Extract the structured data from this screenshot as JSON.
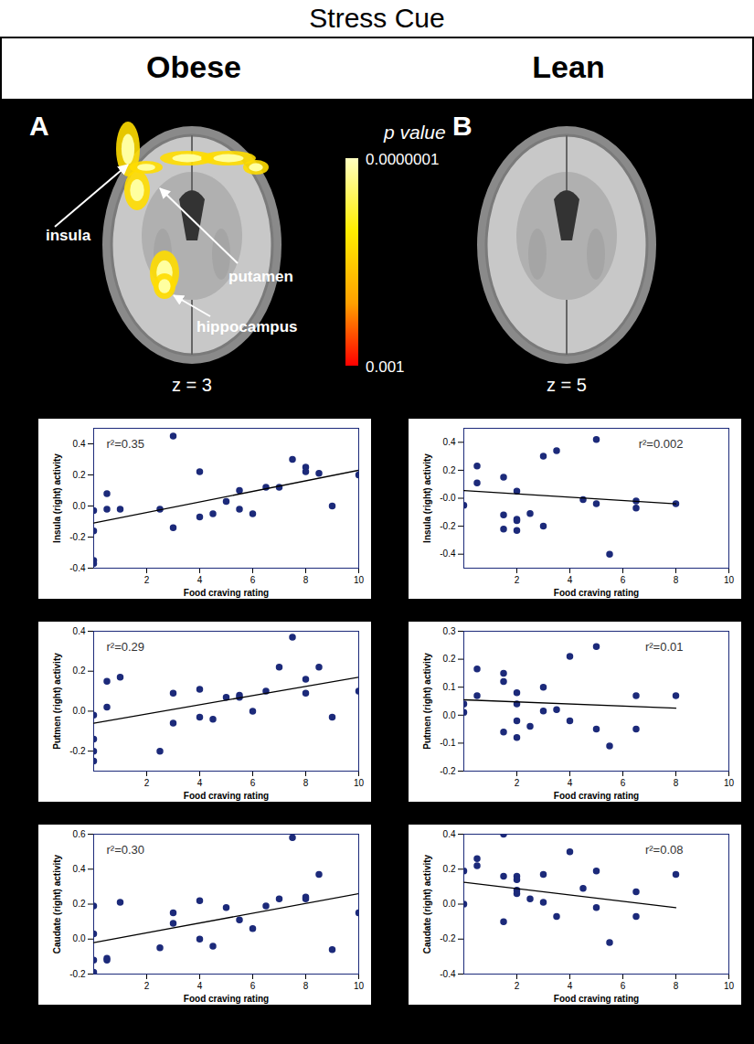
{
  "title": "Stress Cue",
  "columns": [
    "Obese",
    "Lean"
  ],
  "panels": [
    {
      "letter": "A",
      "slice": "z = 3",
      "labels": [
        "insula",
        "putamen",
        "hippocampus"
      ]
    },
    {
      "letter": "B",
      "slice": "z = 5",
      "labels": []
    }
  ],
  "colorbar": {
    "title": "p value",
    "ticks": [
      {
        "value": 1e-07,
        "label": "0.0000001"
      },
      {
        "value": 0.001,
        "label": "0.001"
      }
    ]
  },
  "chart_data": [
    {
      "type": "scatter",
      "xlabel": "Food craving rating",
      "ylabel": "Insula (right) activity",
      "annotation": "r²=0.35",
      "xlim": [
        0,
        10
      ],
      "xticks": [
        2,
        4,
        6,
        8,
        10
      ],
      "ylim": [
        -0.4,
        0.5
      ],
      "yticks": [
        -0.4,
        -0.2,
        {
          "value": 0,
          "label": "0.0"
        },
        0.2,
        0.4
      ],
      "series": [
        {
          "type": "scatter",
          "marker": "circle",
          "color": "#1c2a7a",
          "x": [
            0,
            0,
            0,
            0,
            0.5,
            0.5,
            1,
            2.5,
            3,
            3,
            4,
            4,
            4.5,
            5,
            5.5,
            5.5,
            6,
            6.5,
            7,
            7.5,
            8,
            8,
            8.5,
            9,
            10
          ],
          "values": [
            -0.03,
            -0.16,
            -0.35,
            -0.37,
            0.08,
            -0.02,
            -0.02,
            -0.02,
            -0.14,
            0.45,
            0.22,
            -0.07,
            -0.05,
            0.03,
            0.1,
            -0.02,
            -0.05,
            0.12,
            0.12,
            0.3,
            0.25,
            0.22,
            0.21,
            0.0,
            0.2
          ]
        },
        {
          "type": "line",
          "line_style": "solid",
          "color": "#000000",
          "x": [
            0,
            10
          ],
          "values": [
            -0.11,
            0.23
          ]
        }
      ]
    },
    {
      "type": "scatter",
      "xlabel": "Food craving rating",
      "ylabel": "Insula (right) activity",
      "annotation": "r²=0.002",
      "xlim": [
        0,
        10
      ],
      "xticks": [
        2,
        4,
        6,
        8,
        10
      ],
      "ylim": [
        -0.5,
        0.5
      ],
      "yticks": [
        -0.4,
        -0.2,
        {
          "value": 0,
          "label": "-0.0"
        },
        0.2,
        0.4
      ],
      "series": [
        {
          "type": "scatter",
          "marker": "circle",
          "color": "#1c2a7a",
          "x": [
            0,
            0.5,
            0.5,
            1.5,
            1.5,
            1.5,
            2,
            2,
            2,
            2,
            2.5,
            3,
            3,
            3.5,
            4.5,
            5,
            5,
            5.5,
            6.5,
            6.5,
            8
          ],
          "values": [
            -0.05,
            0.23,
            0.11,
            0.15,
            -0.12,
            -0.22,
            0.05,
            -0.15,
            -0.16,
            -0.23,
            -0.11,
            0.3,
            -0.2,
            0.34,
            -0.01,
            0.42,
            -0.04,
            -0.4,
            -0.02,
            -0.07,
            -0.04
          ]
        },
        {
          "type": "line",
          "line_style": "solid",
          "color": "#000000",
          "x": [
            0,
            8
          ],
          "values": [
            0.055,
            -0.04
          ]
        }
      ]
    },
    {
      "type": "scatter",
      "xlabel": "Food craving rating",
      "ylabel": "Putmen (right) activity",
      "annotation": "r²=0.29",
      "xlim": [
        0,
        10
      ],
      "xticks": [
        2,
        4,
        6,
        8,
        10
      ],
      "ylim": [
        -0.3,
        0.4
      ],
      "yticks": [
        -0.2,
        {
          "value": 0,
          "label": "0.0"
        },
        0.2,
        0.4
      ],
      "series": [
        {
          "type": "scatter",
          "marker": "circle",
          "color": "#1c2a7a",
          "x": [
            0,
            0,
            0,
            0,
            0.5,
            0.5,
            1,
            2.5,
            3,
            3,
            4,
            4,
            4.5,
            5,
            5.5,
            5.5,
            6,
            6.5,
            7,
            7.5,
            8,
            8,
            8.5,
            9,
            10
          ],
          "values": [
            -0.02,
            -0.14,
            -0.2,
            -0.25,
            0.15,
            0.02,
            0.17,
            -0.2,
            0.09,
            -0.06,
            0.11,
            -0.03,
            -0.04,
            0.07,
            0.07,
            0.08,
            0.0,
            0.1,
            0.22,
            0.37,
            0.16,
            0.09,
            0.22,
            -0.03,
            0.1
          ]
        },
        {
          "type": "line",
          "line_style": "solid",
          "color": "#000000",
          "x": [
            0,
            10
          ],
          "values": [
            -0.06,
            0.17
          ]
        }
      ]
    },
    {
      "type": "scatter",
      "xlabel": "Food craving rating",
      "ylabel": "Putmen (right) activity",
      "annotation": "r²=0.01",
      "xlim": [
        0,
        10
      ],
      "xticks": [
        2,
        4,
        6,
        8,
        10
      ],
      "ylim": [
        -0.2,
        0.3
      ],
      "yticks": [
        -0.2,
        -0.1,
        {
          "value": 0,
          "label": "0.0"
        },
        0.1,
        0.2,
        0.3
      ],
      "series": [
        {
          "type": "scatter",
          "marker": "circle",
          "color": "#1c2a7a",
          "x": [
            0,
            0,
            0.5,
            0.5,
            1.5,
            1.5,
            1.5,
            2,
            2,
            2,
            2,
            2.5,
            3,
            3,
            3.5,
            4,
            4,
            5,
            5,
            5.5,
            6.5,
            6.5,
            8
          ],
          "values": [
            0.04,
            0.01,
            0.07,
            0.165,
            0.15,
            0.12,
            -0.06,
            0.08,
            0.04,
            -0.02,
            -0.08,
            -0.04,
            0.1,
            0.015,
            0.02,
            0.21,
            -0.02,
            0.245,
            -0.05,
            -0.11,
            0.07,
            -0.05,
            0.07
          ]
        },
        {
          "type": "line",
          "line_style": "solid",
          "color": "#000000",
          "x": [
            0,
            8
          ],
          "values": [
            0.055,
            0.025
          ]
        }
      ]
    },
    {
      "type": "scatter",
      "xlabel": "Food craving rating",
      "ylabel": "Caudate (right) activity",
      "annotation": "r²=0.30",
      "xlim": [
        0,
        10
      ],
      "xticks": [
        2,
        4,
        6,
        8,
        10
      ],
      "ylim": [
        -0.2,
        0.6
      ],
      "yticks": [
        -0.2,
        {
          "value": 0,
          "label": "0.0"
        },
        0.2,
        0.4,
        0.6
      ],
      "series": [
        {
          "type": "scatter",
          "marker": "circle",
          "color": "#1c2a7a",
          "x": [
            0,
            0,
            0,
            0,
            0.5,
            0.5,
            1,
            2.5,
            3,
            3,
            4,
            4,
            4.5,
            5,
            5.5,
            6,
            6.5,
            7,
            7.5,
            8,
            8,
            8.5,
            9,
            10
          ],
          "values": [
            0.03,
            0.19,
            -0.12,
            -0.19,
            -0.12,
            -0.11,
            0.21,
            -0.05,
            0.15,
            0.09,
            0.22,
            0.0,
            -0.04,
            0.18,
            0.11,
            0.06,
            0.19,
            0.23,
            0.58,
            0.24,
            0.23,
            0.37,
            -0.06,
            0.15
          ]
        },
        {
          "type": "line",
          "line_style": "solid",
          "color": "#000000",
          "x": [
            0,
            10
          ],
          "values": [
            -0.02,
            0.26
          ]
        }
      ]
    },
    {
      "type": "scatter",
      "xlabel": "Food craving rating",
      "ylabel": "Caudate (right) activity",
      "annotation": "r²=0.08",
      "xlim": [
        0,
        10
      ],
      "xticks": [
        2,
        4,
        6,
        8,
        10
      ],
      "ylim": [
        -0.4,
        0.4
      ],
      "yticks": [
        -0.4,
        -0.2,
        {
          "value": 0,
          "label": "0.0"
        },
        0.2,
        0.4
      ],
      "series": [
        {
          "type": "scatter",
          "marker": "circle",
          "color": "#1c2a7a",
          "x": [
            0,
            0,
            0.5,
            0.5,
            1.5,
            1.5,
            1.5,
            2,
            2,
            2,
            2,
            2.5,
            3,
            3,
            3.5,
            4,
            4.5,
            5,
            5,
            5.5,
            6.5,
            6.5,
            8
          ],
          "values": [
            0.19,
            0.0,
            0.26,
            0.22,
            0.4,
            0.16,
            -0.1,
            0.16,
            0.14,
            0.08,
            0.06,
            0.03,
            0.17,
            0.01,
            -0.07,
            0.3,
            0.09,
            0.19,
            -0.02,
            -0.22,
            0.07,
            -0.07,
            0.17
          ]
        },
        {
          "type": "line",
          "line_style": "solid",
          "color": "#000000",
          "x": [
            0,
            8
          ],
          "values": [
            0.125,
            -0.02
          ]
        }
      ]
    }
  ]
}
